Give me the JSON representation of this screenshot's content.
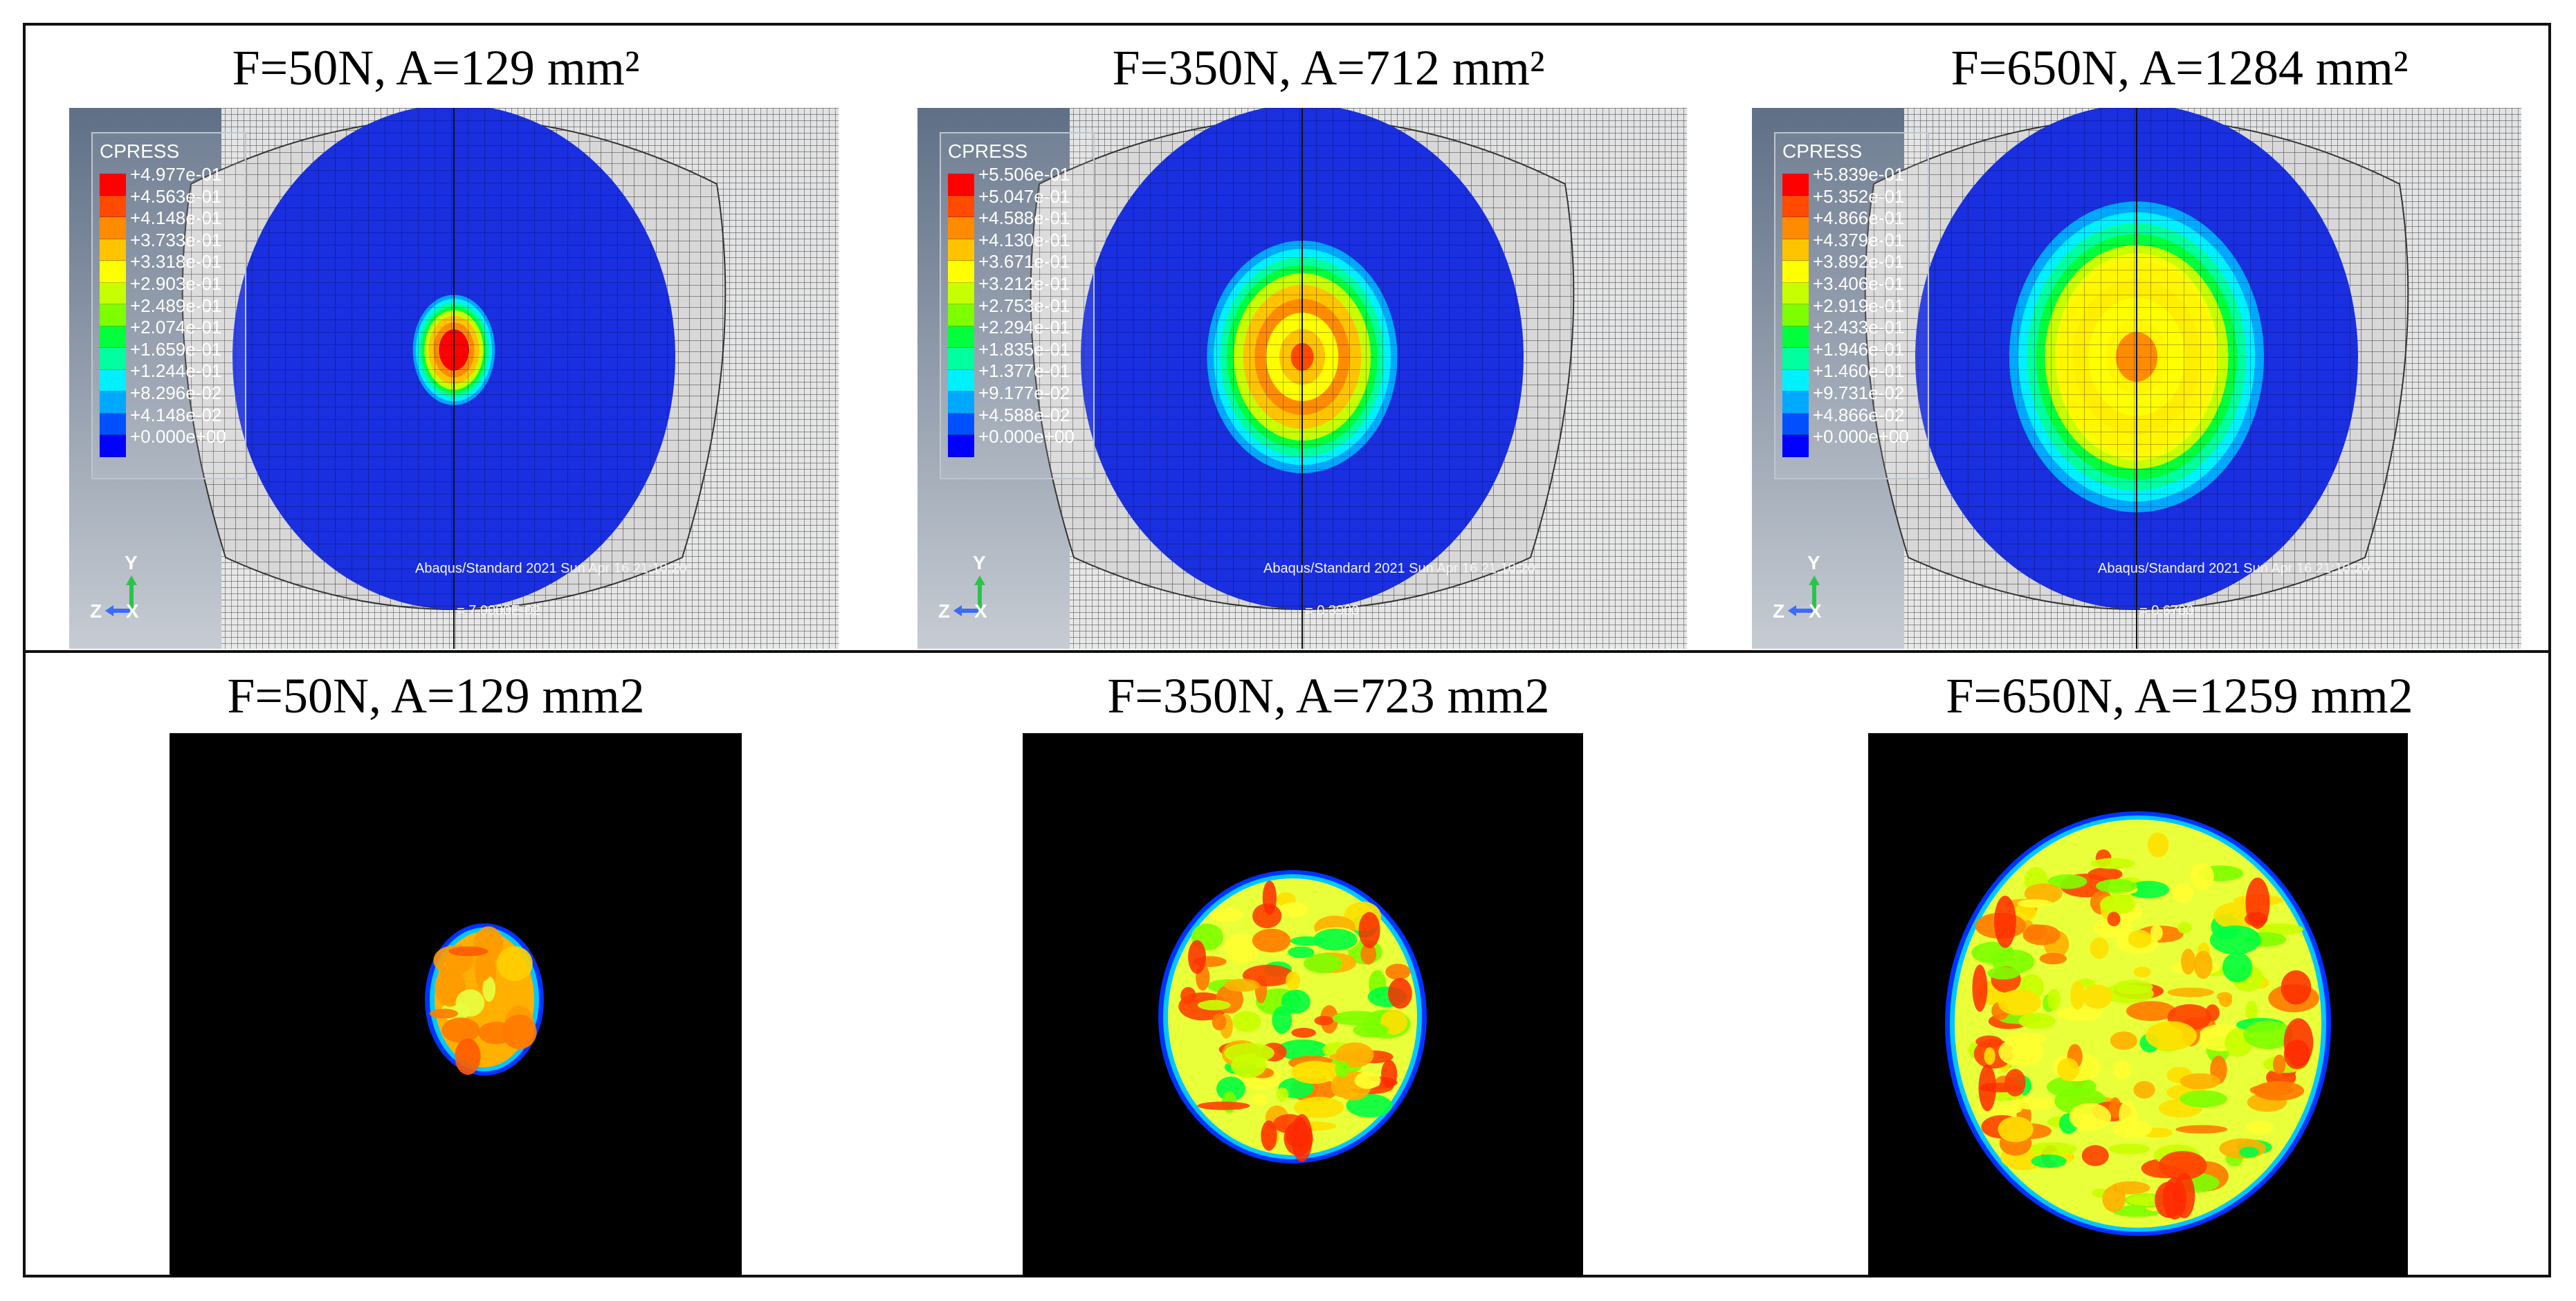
{
  "top_row": [
    {
      "caption": "F=50N, A=129 mm²",
      "legend_title": "CPRESS",
      "legend_values": [
        "+4.977e-01",
        "+4.563e-01",
        "+4.148e-01",
        "+3.733e-01",
        "+3.318e-01",
        "+2.903e-01",
        "+2.489e-01",
        "+2.074e-01",
        "+1.659e-01",
        "+1.244e-01",
        "+8.296e-02",
        "+4.148e-02",
        "+0.000e+00"
      ],
      "software": "Abaqus/Standard 2021",
      "timestamp": "Sun Apr 16 21:10:20",
      "step_time": "7.0000E-02",
      "axis_labels": {
        "y": "Y",
        "z": "Z",
        "x": "X"
      }
    },
    {
      "caption": "F=350N, A=712 mm²",
      "legend_title": "CPRESS",
      "legend_values": [
        "+5.506e-01",
        "+5.047e-01",
        "+4.588e-01",
        "+4.130e-01",
        "+3.671e-01",
        "+3.212e-01",
        "+2.753e-01",
        "+2.294e-01",
        "+1.835e-01",
        "+1.377e-01",
        "+9.177e-02",
        "+4.588e-02",
        "+0.000e+00"
      ],
      "software": "Abaqus/Standard 2021",
      "timestamp": "Sun Apr 16 21:10:20",
      "step_time": "0.3900",
      "axis_labels": {
        "y": "Y",
        "z": "Z",
        "x": "X"
      }
    },
    {
      "caption": "F=650N, A=1284 mm²",
      "legend_title": "CPRESS",
      "legend_values": [
        "+5.839e-01",
        "+5.352e-01",
        "+4.866e-01",
        "+4.379e-01",
        "+3.892e-01",
        "+3.406e-01",
        "+2.919e-01",
        "+2.433e-01",
        "+1.946e-01",
        "+1.460e-01",
        "+9.731e-02",
        "+4.866e-02",
        "+0.000e+00"
      ],
      "software": "Abaqus/Standard 2021",
      "timestamp": "Sun Apr 16 21:10:20",
      "step_time": "0.6700",
      "axis_labels": {
        "y": "Y",
        "z": "Z",
        "x": "X"
      }
    }
  ],
  "bottom_row": [
    {
      "caption": "F=50N, A=129 mm2"
    },
    {
      "caption": "F=350N, A=723 mm2"
    },
    {
      "caption": "F=650N, A=1259 mm2"
    }
  ],
  "colors": {
    "contour_scale": [
      "#ff0000",
      "#ff4a00",
      "#ff8c00",
      "#ffc400",
      "#ffff00",
      "#c8ff00",
      "#7dff00",
      "#00ff3c",
      "#00ff9e",
      "#00f0ff",
      "#00a8ff",
      "#0050ff",
      "#0000ff"
    ],
    "viewport_bg_top": "#5f6f86",
    "viewport_bg_bottom": "#c7ccd3",
    "mesh_blue": "#1a2fe0",
    "sensor_bg": "#000000"
  }
}
